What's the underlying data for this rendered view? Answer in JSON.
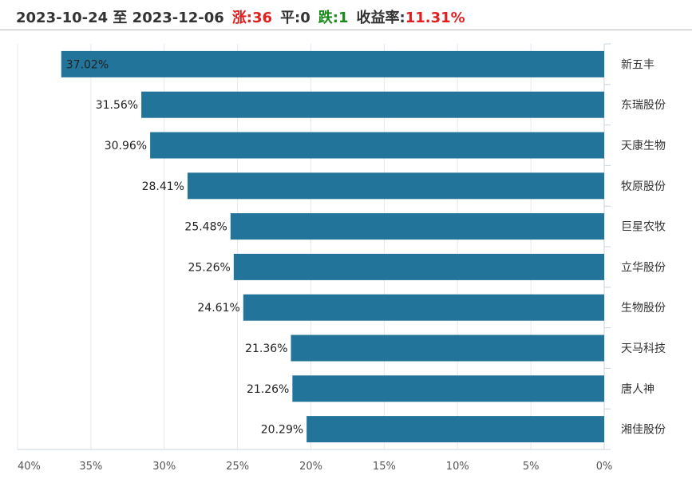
{
  "header": {
    "range": "2023-10-24 至 2023-12-06",
    "up": "涨:36",
    "flat": "平:0",
    "down": "跌:1",
    "yield_label": "收益率:",
    "yield_value": "11.31%"
  },
  "colors": {
    "bar": "#23749b",
    "up": "#e02020",
    "down": "#1a8a1a"
  },
  "chart_data": {
    "type": "bar",
    "orientation": "horizontal",
    "title": "",
    "categories": [
      "新五丰",
      "东瑞股份",
      "天康生物",
      "牧原股份",
      "巨星农牧",
      "立华股份",
      "生物股份",
      "天马科技",
      "唐人神",
      "湘佳股份"
    ],
    "values": [
      37.02,
      31.56,
      30.96,
      28.41,
      25.48,
      25.26,
      24.61,
      21.36,
      21.26,
      20.29
    ],
    "value_labels": [
      "37.02%",
      "31.56%",
      "30.96%",
      "28.41%",
      "25.48%",
      "25.26%",
      "24.61%",
      "21.36%",
      "21.26%",
      "20.29%"
    ],
    "xlim": [
      40,
      0
    ],
    "xticks": [
      40,
      35,
      30,
      25,
      20,
      15,
      10,
      5,
      0
    ],
    "xtick_labels": [
      "40%",
      "35%",
      "30%",
      "25%",
      "20%",
      "15%",
      "10%",
      "5%",
      "0%"
    ],
    "grid": true,
    "xlabel": "",
    "ylabel": ""
  }
}
